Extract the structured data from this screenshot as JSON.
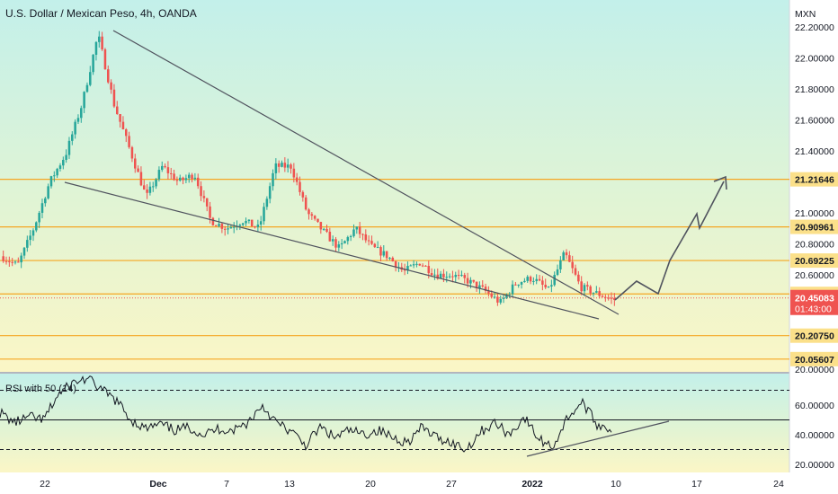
{
  "header": {
    "title": "U.S. Dollar / Mexican Peso, 4h, OANDA",
    "currency": "MXN"
  },
  "colors": {
    "up": "#26a69a",
    "down": "#ef5350",
    "level_line": "#f5a623",
    "trend_line": "#50535e",
    "rsi_line": "#131722",
    "current_price_bg": "#ef5350",
    "label_bg": "#fbe08a"
  },
  "chart_data": [
    {
      "type": "candlestick",
      "title": "U.S. Dollar / Mexican Peso, 4h, OANDA",
      "y_unit": "MXN",
      "ylim": [
        20.0,
        22.25
      ],
      "y_ticks": [
        "22.20000",
        "22.00000",
        "21.80000",
        "21.60000",
        "21.40000",
        "21.20000",
        "21.00000",
        "20.80000",
        "20.60000",
        "20.00000"
      ],
      "x_ticks": [
        "22",
        "Dec",
        "7",
        "13",
        "20",
        "27",
        "2022",
        "10",
        "17",
        "24"
      ],
      "price_series": [
        20.72,
        20.66,
        20.9,
        21.2,
        21.38,
        21.7,
        22.15,
        21.7,
        21.4,
        21.1,
        21.3,
        21.2,
        21.25,
        20.95,
        20.9,
        20.95,
        20.9,
        21.3,
        21.3,
        21.0,
        20.88,
        20.77,
        20.9,
        20.78,
        20.72,
        20.62,
        20.68,
        20.6,
        20.6,
        20.56,
        20.5,
        20.42,
        20.55,
        20.58,
        20.5,
        20.74,
        20.52,
        20.48,
        20.44
      ],
      "level_lines": [
        "21.21646",
        "20.90961",
        "20.69225",
        "20.47702",
        "20.20750",
        "20.05607"
      ],
      "current_price": "20.45083",
      "countdown": "01:43:00",
      "trendlines": [
        {
          "from": [
            "Nov 25",
            22.15
          ],
          "to": [
            "Jan 10",
            20.45
          ]
        },
        {
          "from": [
            "Nov 19",
            21.17
          ],
          "to": [
            "Jan 09",
            20.38
          ]
        }
      ],
      "projection": [
        20.45,
        20.55,
        20.49,
        20.83,
        20.68,
        21.0,
        20.87,
        21.19
      ]
    },
    {
      "type": "line",
      "title": "RSI with 50 (14)",
      "ylim": [
        18,
        80
      ],
      "y_ticks": [
        "60.00000",
        "40.00000",
        "20.00000"
      ],
      "levels": [
        70,
        50,
        30
      ],
      "values": [
        55,
        48,
        52,
        50,
        67,
        75,
        78,
        70,
        63,
        50,
        44,
        47,
        43,
        45,
        40,
        44,
        43,
        48,
        60,
        48,
        42,
        33,
        45,
        38,
        43,
        40,
        43,
        38,
        35,
        45,
        38,
        35,
        30,
        42,
        48,
        40,
        52,
        37,
        32,
        52,
        62,
        47,
        44
      ],
      "trendline": {
        "from": [
          86,
          26
        ],
        "to": [
          109,
          50
        ]
      }
    }
  ]
}
